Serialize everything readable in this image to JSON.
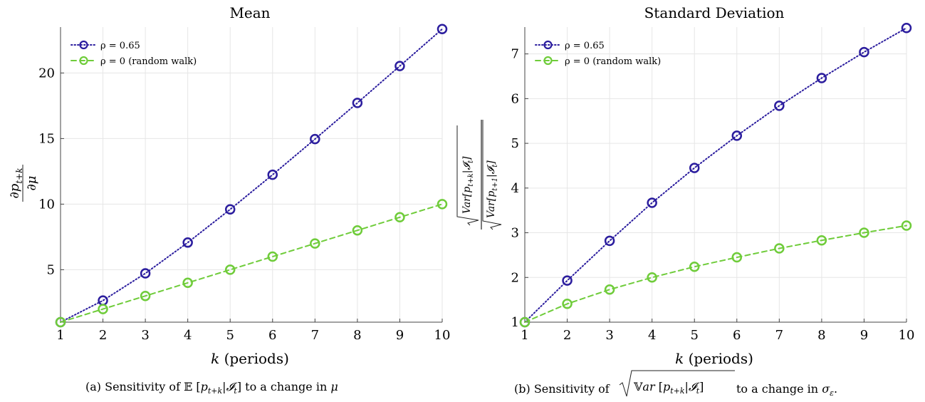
{
  "chart_data": [
    {
      "type": "line",
      "title": "Mean",
      "xlabel": "k (periods)",
      "ylabel": "∂p_{t+k} / ∂μ",
      "xlim": [
        1,
        10
      ],
      "ylim": [
        1,
        23.5
      ],
      "xticks": [
        1,
        2,
        3,
        4,
        5,
        6,
        7,
        8,
        9,
        10
      ],
      "yticks": [
        5,
        10,
        15,
        20
      ],
      "grid": true,
      "legend_position": "top-left",
      "x": [
        1,
        2,
        3,
        4,
        5,
        6,
        7,
        8,
        9,
        10
      ],
      "series": [
        {
          "name": "ρ = 0.65",
          "style": "dotted",
          "marker": "circle",
          "color": "#2b1d9e",
          "values": [
            1.0,
            2.65,
            4.72,
            7.07,
            9.6,
            12.24,
            14.96,
            17.72,
            20.53,
            23.35
          ]
        },
        {
          "name": "ρ = 0 (random walk)",
          "style": "dashed",
          "marker": "circle",
          "color": "#6fcc3a",
          "values": [
            1,
            2,
            3,
            4,
            5,
            6,
            7,
            8,
            9,
            10
          ]
        }
      ],
      "caption": "(a) Sensitivity of 𝔼 [p_{t+k}|𝓘_t] to a change in μ"
    },
    {
      "type": "line",
      "title": "Standard Deviation",
      "xlabel": "k (periods)",
      "ylabel": "√Var[p_{t+k}|𝓘_t] / √Var[p_{t+1}|𝓘_t]",
      "xlim": [
        1,
        10
      ],
      "ylim": [
        1,
        7.6
      ],
      "xticks": [
        1,
        2,
        3,
        4,
        5,
        6,
        7,
        8,
        9,
        10
      ],
      "yticks": [
        1,
        2,
        3,
        4,
        5,
        6,
        7
      ],
      "grid": true,
      "legend_position": "top-left",
      "x": [
        1,
        2,
        3,
        4,
        5,
        6,
        7,
        8,
        9,
        10
      ],
      "series": [
        {
          "name": "ρ = 0.65",
          "style": "dotted",
          "marker": "circle",
          "color": "#2b1d9e",
          "values": [
            1.0,
            1.93,
            2.82,
            3.67,
            4.45,
            5.17,
            5.84,
            6.46,
            7.04,
            7.58
          ]
        },
        {
          "name": "ρ = 0 (random walk)",
          "style": "dashed",
          "marker": "circle",
          "color": "#6fcc3a",
          "values": [
            1.0,
            1.41,
            1.73,
            2.0,
            2.24,
            2.45,
            2.65,
            2.83,
            3.0,
            3.16
          ]
        }
      ],
      "caption": "(b) Sensitivity of √(𝕍ar [p_{t+k}|𝓘_t]) to a change in σ_ε."
    }
  ],
  "labels": {
    "xlabel_var": "k",
    "xlabel_rest": " (periods)",
    "cap_a_pre": "(a) Sensitivity of ",
    "cap_a_E": "𝔼",
    "cap_a_post": " to a change in ",
    "cap_a_mu": "μ",
    "cap_b_pre": "(b) Sensitivity of ",
    "cap_b_post": " to a change in ",
    "cap_b_sigma": "σ",
    "cap_b_eps": "ε",
    "cap_b_end": "."
  }
}
